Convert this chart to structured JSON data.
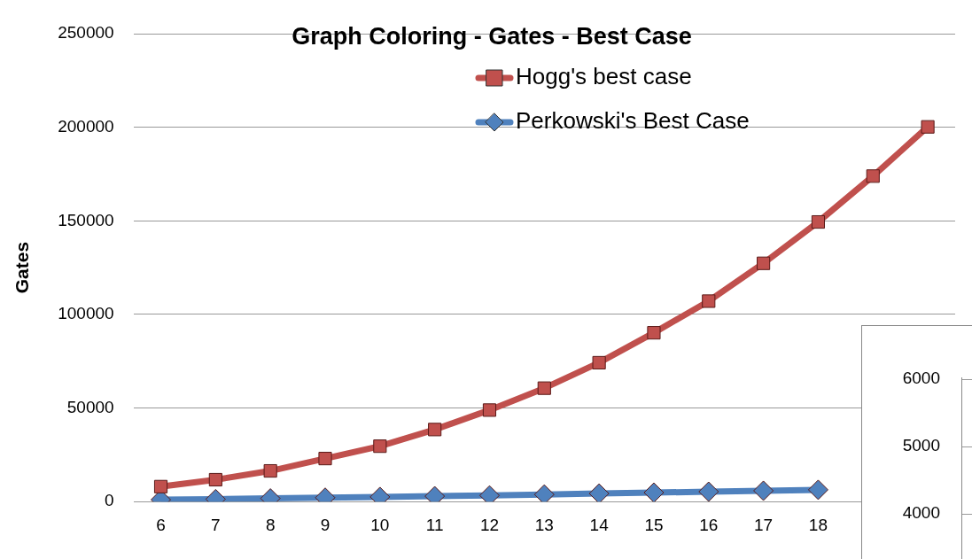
{
  "chart_data": [
    {
      "type": "line",
      "title": "Graph Coloring - Gates - Best Case",
      "ylabel": "Gates",
      "categories": [
        "6",
        "7",
        "8",
        "9",
        "10",
        "11",
        "12",
        "13",
        "14",
        "15",
        "16",
        "17",
        "18",
        null,
        null
      ],
      "series": [
        {
          "name": "Hogg's best case",
          "color": "#c0504d",
          "marker": "square",
          "values": [
            8000,
            11700,
            16400,
            23000,
            29600,
            38500,
            48900,
            60600,
            74200,
            90200,
            107100,
            127300,
            149400,
            173900,
            200200
          ]
        },
        {
          "name": "Perkowski's Best Case",
          "color": "#4f81bd",
          "marker": "diamond",
          "values": [
            1000,
            1300,
            1700,
            2100,
            2500,
            2900,
            3300,
            3800,
            4300,
            4800,
            5300,
            5800,
            6300,
            null,
            null
          ]
        }
      ],
      "ylim": [
        0,
        250000
      ],
      "yticks": [
        0,
        50000,
        100000,
        150000,
        200000,
        250000
      ],
      "grid": "y",
      "legend": "top"
    },
    {
      "type": "other",
      "annotations": [
        "6000",
        "5000",
        "4000"
      ]
    }
  ]
}
